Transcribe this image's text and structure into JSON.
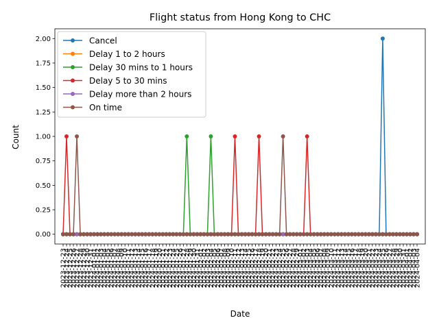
{
  "chart_data": {
    "type": "line",
    "title": "Flight status from Hong Kong to CHC",
    "xlabel": "Date",
    "ylabel": "Count",
    "ylim": [
      -0.1,
      2.1
    ],
    "yticks": [
      "0.00",
      "0.25",
      "0.50",
      "0.75",
      "1.00",
      "1.25",
      "1.50",
      "1.75",
      "2.00"
    ],
    "point_count": 104,
    "x_first": "2023-12-23",
    "x_last": "2024-03-31",
    "legend_position": "upper-left",
    "grid": false,
    "series": [
      {
        "name": "Cancel",
        "color": "#1f77b4",
        "peaks": [
          {
            "index": 93,
            "value": 2
          }
        ]
      },
      {
        "name": "Delay 1 to 2 hours",
        "color": "#ff7f0e",
        "peaks": []
      },
      {
        "name": "Delay 30 mins to 1 hours",
        "color": "#2ca02c",
        "peaks": [
          {
            "index": 36,
            "value": 1
          },
          {
            "index": 43,
            "value": 1
          }
        ]
      },
      {
        "name": "Delay 5 to 30 mins",
        "color": "#d62728",
        "peaks": [
          {
            "index": 1,
            "value": 1
          },
          {
            "index": 50,
            "value": 1
          },
          {
            "index": 57,
            "value": 1
          },
          {
            "index": 71,
            "value": 1
          }
        ]
      },
      {
        "name": "Delay more than 2 hours",
        "color": "#9467bd",
        "peaks": []
      },
      {
        "name": "On time",
        "color": "#8c564b",
        "peaks": [
          {
            "index": 4,
            "value": 1
          },
          {
            "index": 64,
            "value": 1
          }
        ]
      }
    ]
  }
}
